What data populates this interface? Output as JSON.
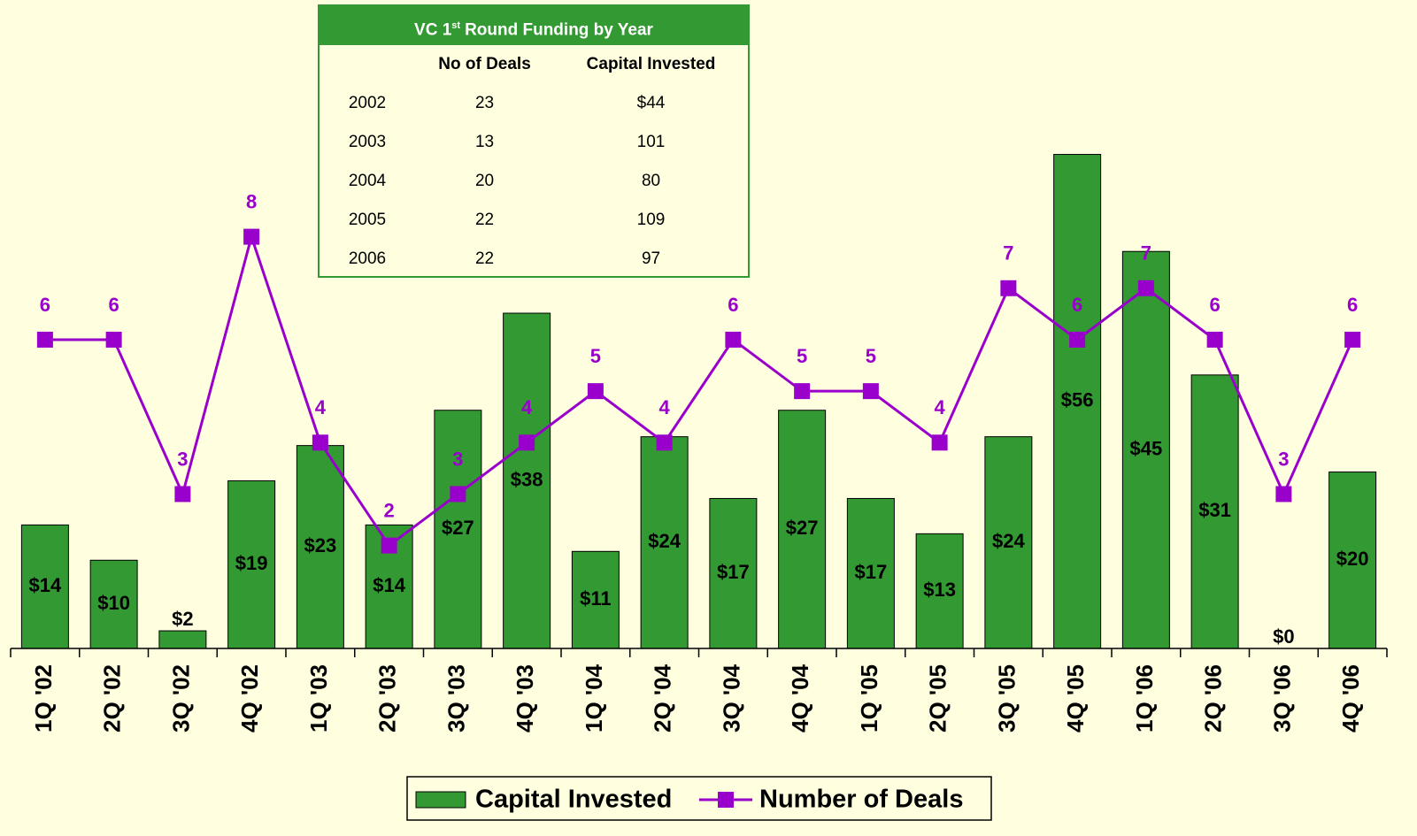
{
  "chart_data": {
    "type": "bar-line",
    "categories": [
      "1Q '02",
      "2Q '02",
      "3Q '02",
      "4Q '02",
      "1Q '03",
      "2Q '03",
      "3Q '03",
      "4Q '03",
      "1Q '04",
      "2Q '04",
      "3Q '04",
      "4Q '04",
      "1Q '05",
      "2Q '05",
      "3Q '05",
      "4Q '05",
      "1Q '06",
      "2Q '06",
      "3Q '06",
      "4Q '06"
    ],
    "series": [
      {
        "name": "Capital Invested",
        "type": "bar",
        "color": "#339933",
        "values": [
          14,
          10,
          2,
          19,
          23,
          14,
          27,
          38,
          11,
          24,
          17,
          27,
          17,
          13,
          24,
          56,
          45,
          31,
          0,
          20
        ],
        "value_labels": [
          "$14",
          "$10",
          "$2",
          "$19",
          "$23",
          "$14",
          "$27",
          "$38",
          "$11",
          "$24",
          "$17",
          "$27",
          "$17",
          "$13",
          "$24",
          "$56",
          "$45",
          "$31",
          "$0",
          "$20"
        ]
      },
      {
        "name": "Number of Deals",
        "type": "line",
        "axis": "y2",
        "color": "#9900cc",
        "values": [
          6,
          6,
          3,
          8,
          4,
          2,
          3,
          4,
          5,
          4,
          6,
          5,
          5,
          4,
          7,
          6,
          7,
          6,
          3,
          6
        ]
      }
    ],
    "ylim": [
      0,
      73.5
    ],
    "y2lim": [
      0,
      12.6
    ],
    "legend": "bottom"
  },
  "table": {
    "title": {
      "before": "VC 1",
      "superscript": "st",
      "after": "Round Funding by Year"
    },
    "headers": [
      "No of Deals",
      "Capital Invested"
    ],
    "rows": [
      [
        "2002",
        "23",
        "$44"
      ],
      [
        "2003",
        "13",
        "101"
      ],
      [
        "2004",
        "20",
        "80"
      ],
      [
        "2005",
        "22",
        "109"
      ],
      [
        "2006",
        "22",
        "97"
      ]
    ]
  }
}
